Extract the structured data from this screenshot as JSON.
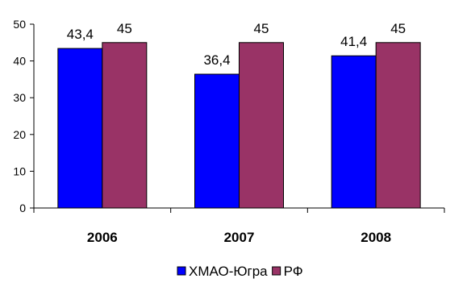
{
  "chart_data": {
    "type": "bar",
    "categories": [
      "2006",
      "2007",
      "2008"
    ],
    "series": [
      {
        "name": "ХМАО-Югра",
        "values": [
          43.4,
          36.4,
          41.4
        ],
        "labels": [
          "43,4",
          "36,4",
          "41,4"
        ],
        "color": "#0000ff"
      },
      {
        "name": "РФ",
        "values": [
          45,
          45,
          45
        ],
        "labels": [
          "45",
          "45",
          "45"
        ],
        "color": "#993366"
      }
    ],
    "ylim": [
      0,
      50
    ],
    "yticks": [
      0,
      10,
      20,
      30,
      40,
      50
    ],
    "grid": false,
    "legend_position": "bottom-center",
    "title": "",
    "xlabel": "",
    "ylabel": ""
  }
}
